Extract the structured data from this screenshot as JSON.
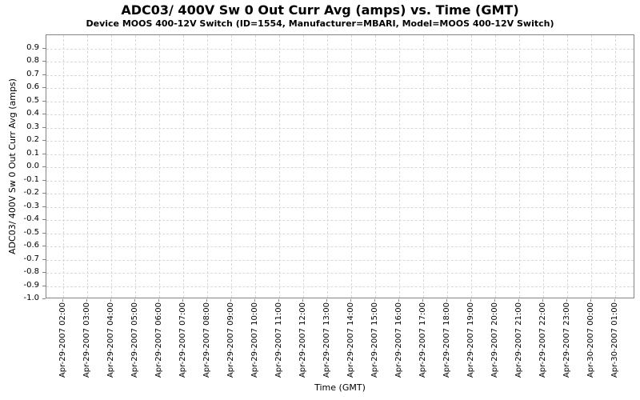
{
  "colors": {
    "background": "#ffffff",
    "plot_background": "#ffffff",
    "plot_border": "#848484",
    "gridline": "#d9d9d9",
    "text": "#000000"
  },
  "chart_data": {
    "type": "line",
    "title": "ADC03/ 400V Sw 0 Out Curr Avg (amps) vs. Time (GMT)",
    "subtitle": "Device MOOS 400-12V Switch (ID=1554, Manufacturer=MBARI, Model=MOOS 400-12V Switch)",
    "xlabel": "Time (GMT)",
    "ylabel": "ADC03/ 400V Sw 0 Out Curr Avg (amps)",
    "ylim": [
      -1.0,
      1.0
    ],
    "grid": true,
    "legend": false,
    "series": [],
    "empty_plot": true,
    "y_ticks": [
      "0.9",
      "0.8",
      "0.7",
      "0.6",
      "0.5",
      "0.4",
      "0.3",
      "0.2",
      "0.1",
      "0.0",
      "-0.1",
      "-0.2",
      "-0.3",
      "-0.4",
      "-0.5",
      "-0.6",
      "-0.7",
      "-0.8",
      "-0.9",
      "-1.0"
    ],
    "x_ticks": [
      "Apr-29-2007 02:00",
      "Apr-29-2007 03:00",
      "Apr-29-2007 04:00",
      "Apr-29-2007 05:00",
      "Apr-29-2007 06:00",
      "Apr-29-2007 07:00",
      "Apr-29-2007 08:00",
      "Apr-29-2007 09:00",
      "Apr-29-2007 10:00",
      "Apr-29-2007 11:00",
      "Apr-29-2007 12:00",
      "Apr-29-2007 13:00",
      "Apr-29-2007 14:00",
      "Apr-29-2007 15:00",
      "Apr-29-2007 16:00",
      "Apr-29-2007 17:00",
      "Apr-29-2007 18:00",
      "Apr-29-2007 19:00",
      "Apr-29-2007 20:00",
      "Apr-29-2007 21:00",
      "Apr-29-2007 22:00",
      "Apr-29-2007 23:00",
      "Apr-30-2007 00:00",
      "Apr-30-2007 01:00"
    ]
  }
}
